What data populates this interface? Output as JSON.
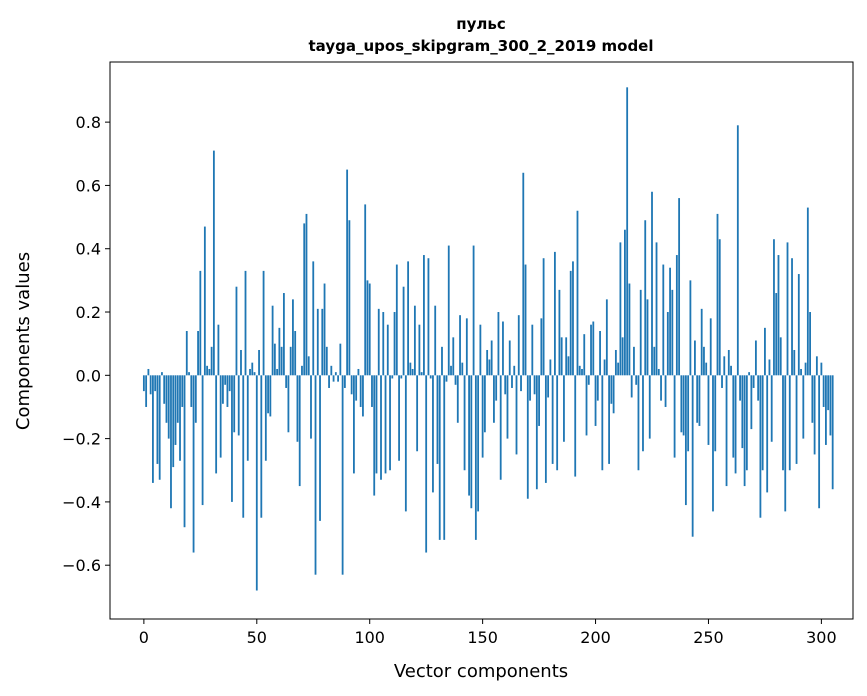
{
  "chart_data": {
    "type": "bar",
    "title_line1": "пульс",
    "title_line2": "tayga_upos_skipgram_300_2_2019 model",
    "xlabel": "Vector components",
    "ylabel": "Components values",
    "xlim": [
      -15,
      314
    ],
    "ylim": [
      -0.77,
      0.99
    ],
    "xticks": [
      0,
      50,
      100,
      150,
      200,
      250,
      300
    ],
    "xtick_labels": [
      "0",
      "50",
      "100",
      "150",
      "200",
      "250",
      "300"
    ],
    "yticks": [
      -0.6,
      -0.4,
      -0.2,
      0.0,
      0.2,
      0.4,
      0.6,
      0.8
    ],
    "ytick_labels": [
      "−0.6",
      "−0.4",
      "−0.2",
      "0.0",
      "0.2",
      "0.4",
      "0.6",
      "0.8"
    ],
    "bar_color": "#1f77b4",
    "values": [
      -0.05,
      -0.1,
      0.02,
      -0.06,
      -0.34,
      -0.05,
      -0.28,
      -0.33,
      0.01,
      -0.09,
      -0.15,
      -0.2,
      -0.42,
      -0.29,
      -0.22,
      -0.15,
      -0.27,
      -0.1,
      -0.48,
      0.14,
      0.01,
      -0.1,
      -0.56,
      -0.15,
      0.14,
      0.33,
      -0.41,
      0.47,
      0.03,
      0.02,
      0.09,
      0.71,
      -0.31,
      0.16,
      -0.26,
      -0.09,
      -0.03,
      -0.1,
      -0.05,
      -0.4,
      -0.18,
      0.28,
      -0.19,
      0.08,
      -0.45,
      0.33,
      -0.27,
      0.02,
      0.04,
      0.01,
      -0.68,
      0.08,
      -0.45,
      0.33,
      -0.27,
      -0.12,
      -0.13,
      0.22,
      0.1,
      0.02,
      0.15,
      0.09,
      0.26,
      -0.04,
      -0.18,
      0.09,
      0.24,
      0.14,
      -0.21,
      -0.35,
      0.03,
      0.48,
      0.51,
      0.06,
      -0.2,
      0.36,
      -0.63,
      0.21,
      -0.46,
      0.21,
      0.29,
      0.09,
      -0.04,
      0.03,
      -0.02,
      0.01,
      -0.02,
      0.1,
      -0.63,
      -0.04,
      0.65,
      0.49,
      -0.06,
      -0.31,
      -0.08,
      0.02,
      -0.1,
      -0.13,
      0.54,
      0.3,
      0.29,
      -0.1,
      -0.38,
      -0.31,
      0.21,
      -0.33,
      0.2,
      -0.31,
      0.16,
      -0.3,
      -0.01,
      0.2,
      0.35,
      -0.27,
      -0.01,
      0.28,
      -0.43,
      0.36,
      0.04,
      0.02,
      0.22,
      -0.24,
      0.16,
      0.01,
      0.38,
      -0.56,
      0.37,
      -0.01,
      -0.37,
      0.22,
      -0.28,
      -0.52,
      0.09,
      -0.52,
      -0.02,
      0.41,
      0.03,
      0.12,
      -0.03,
      -0.15,
      0.19,
      0.04,
      -0.3,
      0.18,
      -0.38,
      -0.42,
      0.41,
      -0.52,
      -0.43,
      0.16,
      -0.26,
      -0.18,
      0.08,
      0.05,
      0.11,
      -0.15,
      -0.08,
      0.2,
      -0.33,
      0.17,
      -0.06,
      -0.2,
      0.11,
      -0.04,
      0.03,
      -0.25,
      0.19,
      -0.05,
      0.64,
      0.35,
      -0.39,
      -0.08,
      0.16,
      -0.06,
      -0.36,
      -0.16,
      0.18,
      0.37,
      -0.34,
      -0.07,
      0.05,
      -0.28,
      0.39,
      -0.3,
      0.27,
      0.12,
      -0.21,
      0.12,
      0.06,
      0.33,
      0.36,
      -0.32,
      0.52,
      0.03,
      0.02,
      0.13,
      -0.19,
      -0.03,
      0.16,
      0.17,
      -0.16,
      -0.08,
      0.14,
      -0.3,
      0.05,
      0.24,
      -0.28,
      -0.09,
      -0.12,
      0.08,
      0.04,
      0.42,
      0.12,
      0.46,
      0.91,
      0.29,
      -0.07,
      0.09,
      -0.03,
      -0.3,
      0.27,
      -0.24,
      0.49,
      0.24,
      -0.2,
      0.58,
      0.09,
      0.42,
      0.02,
      -0.08,
      0.35,
      -0.1,
      0.2,
      0.34,
      0.27,
      -0.26,
      0.38,
      0.56,
      -0.18,
      -0.19,
      -0.41,
      -0.24,
      0.3,
      -0.51,
      0.11,
      -0.15,
      -0.16,
      0.21,
      0.09,
      0.04,
      -0.22,
      0.18,
      -0.43,
      -0.24,
      0.51,
      0.43,
      -0.04,
      0.06,
      -0.35,
      0.08,
      0.03,
      -0.26,
      -0.31,
      0.79,
      -0.08,
      -0.23,
      -0.35,
      -0.3,
      0.01,
      -0.17,
      -0.04,
      0.11,
      -0.08,
      -0.45,
      -0.3,
      0.15,
      -0.37,
      0.05,
      -0.21,
      0.43,
      0.26,
      0.38,
      0.12,
      -0.3,
      -0.43,
      0.42,
      -0.3,
      0.37,
      0.08,
      -0.28,
      0.32,
      0.02,
      -0.2,
      0.04,
      0.53,
      0.2,
      -0.15,
      -0.25,
      0.06,
      -0.42,
      0.04,
      -0.1,
      -0.22,
      -0.11,
      -0.19,
      -0.36
    ]
  }
}
